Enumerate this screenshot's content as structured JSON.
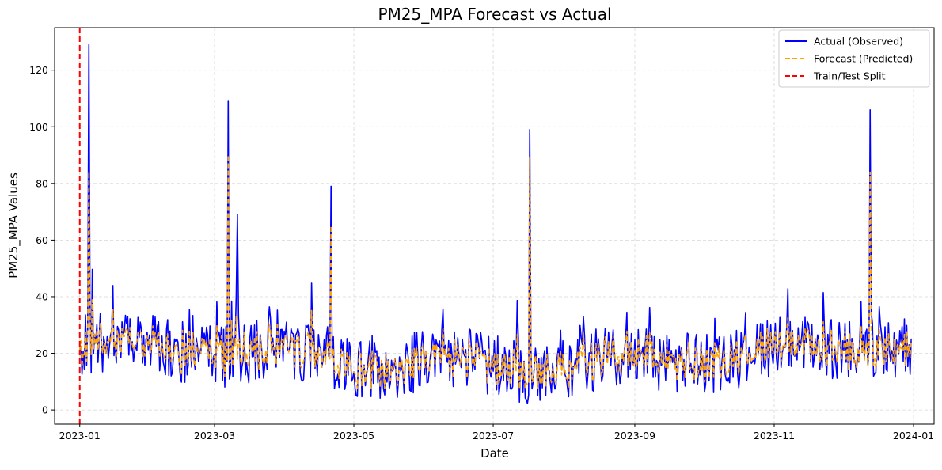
{
  "chart_data": {
    "type": "line",
    "title": "PM25_MPA Forecast vs Actual",
    "xlabel": "Date",
    "ylabel": "PM25_MPA Values",
    "x_range": [
      "2022-12-21",
      "2024-01-10"
    ],
    "ylim": [
      -5,
      135
    ],
    "x_ticks": [
      "2023-01",
      "2023-03",
      "2023-05",
      "2023-07",
      "2023-09",
      "2023-11",
      "2024-01"
    ],
    "y_ticks": [
      0,
      20,
      40,
      60,
      80,
      100,
      120
    ],
    "grid": true,
    "legend_position": "top-right",
    "split_date": "2023-01-01",
    "series": [
      {
        "name": "Actual (Observed)",
        "color": "#0000ff",
        "style": "solid",
        "start_date": "2023-01-01",
        "end_date": "2023-12-31",
        "sample_interval_hours": 12,
        "values_note": "approximate twice-daily samples read from the plot",
        "peaks": [
          {
            "date": "2023-01-05",
            "value": 129
          },
          {
            "date": "2023-03-07",
            "value": 109
          },
          {
            "date": "2023-03-11",
            "value": 69
          },
          {
            "date": "2023-04-21",
            "value": 79
          },
          {
            "date": "2023-07-17",
            "value": 99
          },
          {
            "date": "2023-12-13",
            "value": 106
          }
        ]
      },
      {
        "name": "Forecast (Predicted)",
        "color": "#ffa500",
        "style": "dashed",
        "start_date": "2023-01-01",
        "end_date": "2023-12-31",
        "peaks": [
          {
            "date": "2023-01-05",
            "value": 84
          },
          {
            "date": "2023-03-07",
            "value": 90
          },
          {
            "date": "2023-04-21",
            "value": 65
          },
          {
            "date": "2023-07-17",
            "value": 89
          },
          {
            "date": "2023-12-13",
            "value": 84
          }
        ]
      },
      {
        "name": "Train/Test Split",
        "color": "#ff0000",
        "style": "dashed-vertical",
        "date": "2023-01-01"
      }
    ]
  }
}
